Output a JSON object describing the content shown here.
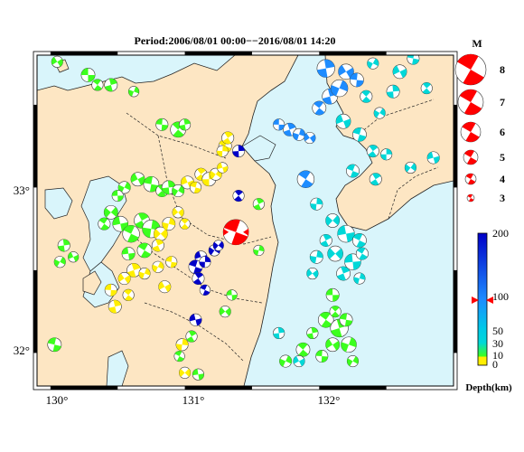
{
  "title": "Period:2006/08/01 00:00−−2016/08/01 14:20",
  "colors": {
    "sea": "#d9f5fb",
    "land": "#fde6c3",
    "border": "#222222",
    "mainshock": "#ff0000",
    "depth_0_10": "#ffee00",
    "depth_10_30": "#3cff1e",
    "depth_30_50": "#00d8d8",
    "depth_50_100": "#1e8cff",
    "depth_100_200": "#0000c8"
  },
  "axes": {
    "lon_ticks": [
      "130°",
      "131°",
      "132°"
    ],
    "lat_ticks": [
      "33°",
      "32°"
    ]
  },
  "magnitude_legend": {
    "header": "M",
    "items": [
      "8",
      "7",
      "6",
      "5",
      "4",
      "3"
    ]
  },
  "depth_scale": {
    "title": "Depth(km)",
    "labels": [
      "200",
      "100",
      "50",
      "30",
      "10",
      "0"
    ]
  },
  "map_data": {
    "region": {
      "lon": [
        129.9,
        133.0
      ],
      "lat": [
        31.8,
        33.8
      ]
    },
    "mainshock": {
      "lon": 131.38,
      "lat": 32.73,
      "depth_km": 10,
      "magnitude": 5
    },
    "events": [
      {
        "lon": 130.28,
        "lat": 33.68,
        "d": 15,
        "m": 3.8
      },
      {
        "lon": 130.35,
        "lat": 33.62,
        "d": 15,
        "m": 3.5
      },
      {
        "lon": 130.45,
        "lat": 33.62,
        "d": 15,
        "m": 3.7
      },
      {
        "lon": 130.62,
        "lat": 33.58,
        "d": 12,
        "m": 3.4
      },
      {
        "lon": 130.05,
        "lat": 33.76,
        "d": 20,
        "m": 3.5
      },
      {
        "lon": 130.83,
        "lat": 33.38,
        "d": 12,
        "m": 3.6
      },
      {
        "lon": 130.95,
        "lat": 33.35,
        "d": 20,
        "m": 4.0
      },
      {
        "lon": 131.0,
        "lat": 33.38,
        "d": 20,
        "m": 3.5
      },
      {
        "lon": 130.55,
        "lat": 33.0,
        "d": 20,
        "m": 3.6
      },
      {
        "lon": 130.65,
        "lat": 33.05,
        "d": 15,
        "m": 3.8
      },
      {
        "lon": 130.75,
        "lat": 33.02,
        "d": 20,
        "m": 4.0
      },
      {
        "lon": 130.83,
        "lat": 32.98,
        "d": 20,
        "m": 3.6
      },
      {
        "lon": 130.88,
        "lat": 33.0,
        "d": 15,
        "m": 3.8
      },
      {
        "lon": 130.95,
        "lat": 32.98,
        "d": 12,
        "m": 3.6
      },
      {
        "lon": 131.02,
        "lat": 33.03,
        "d": 10,
        "m": 3.7
      },
      {
        "lon": 131.08,
        "lat": 33.0,
        "d": 8,
        "m": 3.5
      },
      {
        "lon": 131.12,
        "lat": 33.08,
        "d": 8,
        "m": 3.6
      },
      {
        "lon": 131.18,
        "lat": 33.05,
        "d": 10,
        "m": 3.8
      },
      {
        "lon": 131.23,
        "lat": 33.08,
        "d": 10,
        "m": 3.6
      },
      {
        "lon": 131.28,
        "lat": 33.12,
        "d": 6,
        "m": 3.4
      },
      {
        "lon": 131.3,
        "lat": 33.25,
        "d": 8,
        "m": 3.7
      },
      {
        "lon": 131.32,
        "lat": 33.3,
        "d": 6,
        "m": 3.6
      },
      {
        "lon": 131.28,
        "lat": 33.22,
        "d": 10,
        "m": 3.5
      },
      {
        "lon": 130.45,
        "lat": 32.85,
        "d": 20,
        "m": 3.8
      },
      {
        "lon": 130.52,
        "lat": 32.78,
        "d": 25,
        "m": 4.0
      },
      {
        "lon": 130.6,
        "lat": 32.72,
        "d": 20,
        "m": 4.2
      },
      {
        "lon": 130.68,
        "lat": 32.8,
        "d": 15,
        "m": 4.0
      },
      {
        "lon": 130.75,
        "lat": 32.75,
        "d": 12,
        "m": 4.3
      },
      {
        "lon": 130.82,
        "lat": 32.72,
        "d": 10,
        "m": 3.8
      },
      {
        "lon": 130.58,
        "lat": 32.6,
        "d": 15,
        "m": 3.7
      },
      {
        "lon": 130.7,
        "lat": 32.62,
        "d": 12,
        "m": 3.9
      },
      {
        "lon": 130.8,
        "lat": 32.65,
        "d": 10,
        "m": 3.6
      },
      {
        "lon": 130.88,
        "lat": 32.78,
        "d": 8,
        "m": 3.7
      },
      {
        "lon": 130.95,
        "lat": 32.85,
        "d": 8,
        "m": 3.5
      },
      {
        "lon": 130.5,
        "lat": 32.95,
        "d": 20,
        "m": 3.5
      },
      {
        "lon": 130.4,
        "lat": 32.78,
        "d": 25,
        "m": 3.6
      },
      {
        "lon": 130.62,
        "lat": 32.5,
        "d": 8,
        "m": 3.8
      },
      {
        "lon": 130.7,
        "lat": 32.48,
        "d": 10,
        "m": 3.5
      },
      {
        "lon": 130.55,
        "lat": 32.45,
        "d": 8,
        "m": 3.6
      },
      {
        "lon": 130.45,
        "lat": 32.38,
        "d": 10,
        "m": 3.6
      },
      {
        "lon": 130.58,
        "lat": 32.35,
        "d": 8,
        "m": 3.5
      },
      {
        "lon": 130.48,
        "lat": 32.28,
        "d": 6,
        "m": 3.7
      },
      {
        "lon": 130.8,
        "lat": 32.52,
        "d": 10,
        "m": 3.5
      },
      {
        "lon": 130.85,
        "lat": 32.4,
        "d": 8,
        "m": 3.6
      },
      {
        "lon": 130.9,
        "lat": 32.55,
        "d": 10,
        "m": 3.5
      },
      {
        "lon": 131.0,
        "lat": 32.78,
        "d": 6,
        "m": 3.4
      },
      {
        "lon": 130.1,
        "lat": 32.65,
        "d": 15,
        "m": 3.6
      },
      {
        "lon": 130.07,
        "lat": 32.55,
        "d": 20,
        "m": 3.5
      },
      {
        "lon": 130.17,
        "lat": 32.58,
        "d": 15,
        "m": 3.4
      },
      {
        "lon": 130.03,
        "lat": 32.05,
        "d": 15,
        "m": 3.8
      },
      {
        "lon": 131.4,
        "lat": 32.95,
        "d": 150,
        "m": 3.5
      },
      {
        "lon": 131.4,
        "lat": 33.22,
        "d": 150,
        "m": 3.6
      },
      {
        "lon": 131.22,
        "lat": 32.62,
        "d": 150,
        "m": 3.5
      },
      {
        "lon": 131.12,
        "lat": 32.58,
        "d": 160,
        "m": 3.6
      },
      {
        "lon": 131.08,
        "lat": 32.52,
        "d": 160,
        "m": 3.8
      },
      {
        "lon": 131.1,
        "lat": 32.45,
        "d": 150,
        "m": 3.6
      },
      {
        "lon": 131.15,
        "lat": 32.55,
        "d": 140,
        "m": 3.5
      },
      {
        "lon": 131.25,
        "lat": 32.65,
        "d": 140,
        "m": 3.4
      },
      {
        "lon": 131.08,
        "lat": 32.2,
        "d": 170,
        "m": 3.6
      },
      {
        "lon": 131.15,
        "lat": 32.38,
        "d": 150,
        "m": 3.4
      },
      {
        "lon": 131.05,
        "lat": 32.1,
        "d": 20,
        "m": 3.5
      },
      {
        "lon": 130.98,
        "lat": 32.05,
        "d": 10,
        "m": 3.6
      },
      {
        "lon": 131.0,
        "lat": 31.88,
        "d": 10,
        "m": 3.5
      },
      {
        "lon": 131.1,
        "lat": 31.87,
        "d": 30,
        "m": 3.5
      },
      {
        "lon": 130.96,
        "lat": 31.98,
        "d": 12,
        "m": 3.4
      },
      {
        "lon": 131.55,
        "lat": 32.9,
        "d": 30,
        "m": 3.5
      },
      {
        "lon": 131.55,
        "lat": 32.62,
        "d": 30,
        "m": 3.4
      },
      {
        "lon": 131.3,
        "lat": 32.25,
        "d": 30,
        "m": 3.5
      },
      {
        "lon": 131.35,
        "lat": 32.35,
        "d": 25,
        "m": 3.4
      },
      {
        "lon": 131.9,
        "lat": 33.05,
        "d": 60,
        "m": 4.2
      },
      {
        "lon": 131.78,
        "lat": 33.35,
        "d": 70,
        "m": 3.7
      },
      {
        "lon": 131.85,
        "lat": 33.32,
        "d": 70,
        "m": 3.6
      },
      {
        "lon": 131.93,
        "lat": 33.3,
        "d": 60,
        "m": 3.5
      },
      {
        "lon": 131.7,
        "lat": 33.38,
        "d": 75,
        "m": 3.5
      },
      {
        "lon": 132.0,
        "lat": 33.48,
        "d": 60,
        "m": 3.8
      },
      {
        "lon": 132.08,
        "lat": 33.55,
        "d": 60,
        "m": 4.0
      },
      {
        "lon": 132.15,
        "lat": 33.6,
        "d": 55,
        "m": 4.2
      },
      {
        "lon": 132.2,
        "lat": 33.7,
        "d": 60,
        "m": 4.0
      },
      {
        "lon": 132.28,
        "lat": 33.65,
        "d": 55,
        "m": 3.8
      },
      {
        "lon": 132.35,
        "lat": 33.55,
        "d": 50,
        "m": 3.6
      },
      {
        "lon": 132.05,
        "lat": 33.72,
        "d": 70,
        "m": 4.3
      },
      {
        "lon": 132.4,
        "lat": 33.75,
        "d": 50,
        "m": 3.5
      },
      {
        "lon": 132.6,
        "lat": 33.7,
        "d": 45,
        "m": 3.8
      },
      {
        "lon": 132.7,
        "lat": 33.78,
        "d": 45,
        "m": 3.6
      },
      {
        "lon": 132.8,
        "lat": 33.6,
        "d": 40,
        "m": 3.5
      },
      {
        "lon": 132.55,
        "lat": 33.58,
        "d": 45,
        "m": 3.7
      },
      {
        "lon": 132.45,
        "lat": 33.45,
        "d": 40,
        "m": 3.5
      },
      {
        "lon": 132.18,
        "lat": 33.4,
        "d": 50,
        "m": 3.9
      },
      {
        "lon": 132.3,
        "lat": 33.32,
        "d": 45,
        "m": 3.8
      },
      {
        "lon": 132.4,
        "lat": 33.22,
        "d": 40,
        "m": 3.6
      },
      {
        "lon": 132.5,
        "lat": 33.2,
        "d": 40,
        "m": 3.5
      },
      {
        "lon": 132.68,
        "lat": 33.12,
        "d": 35,
        "m": 3.5
      },
      {
        "lon": 132.85,
        "lat": 33.18,
        "d": 40,
        "m": 3.6
      },
      {
        "lon": 132.25,
        "lat": 33.1,
        "d": 40,
        "m": 3.7
      },
      {
        "lon": 132.42,
        "lat": 33.05,
        "d": 35,
        "m": 3.6
      },
      {
        "lon": 131.98,
        "lat": 32.9,
        "d": 40,
        "m": 3.6
      },
      {
        "lon": 132.1,
        "lat": 32.8,
        "d": 40,
        "m": 3.8
      },
      {
        "lon": 132.2,
        "lat": 32.72,
        "d": 40,
        "m": 4.2
      },
      {
        "lon": 132.3,
        "lat": 32.68,
        "d": 35,
        "m": 3.8
      },
      {
        "lon": 132.05,
        "lat": 32.68,
        "d": 45,
        "m": 3.6
      },
      {
        "lon": 131.98,
        "lat": 32.58,
        "d": 40,
        "m": 3.7
      },
      {
        "lon": 132.12,
        "lat": 32.6,
        "d": 40,
        "m": 4.0
      },
      {
        "lon": 132.25,
        "lat": 32.55,
        "d": 38,
        "m": 4.1
      },
      {
        "lon": 132.32,
        "lat": 32.6,
        "d": 35,
        "m": 3.6
      },
      {
        "lon": 132.18,
        "lat": 32.48,
        "d": 38,
        "m": 3.8
      },
      {
        "lon": 132.3,
        "lat": 32.45,
        "d": 35,
        "m": 3.5
      },
      {
        "lon": 131.95,
        "lat": 32.48,
        "d": 40,
        "m": 3.5
      },
      {
        "lon": 132.1,
        "lat": 32.35,
        "d": 25,
        "m": 3.7
      },
      {
        "lon": 132.05,
        "lat": 32.2,
        "d": 20,
        "m": 4.0
      },
      {
        "lon": 132.15,
        "lat": 32.15,
        "d": 20,
        "m": 4.3
      },
      {
        "lon": 132.22,
        "lat": 32.05,
        "d": 25,
        "m": 4.0
      },
      {
        "lon": 132.1,
        "lat": 32.05,
        "d": 20,
        "m": 3.8
      },
      {
        "lon": 132.02,
        "lat": 31.98,
        "d": 25,
        "m": 3.6
      },
      {
        "lon": 131.88,
        "lat": 32.02,
        "d": 20,
        "m": 3.8
      },
      {
        "lon": 131.95,
        "lat": 32.12,
        "d": 30,
        "m": 3.5
      },
      {
        "lon": 131.75,
        "lat": 31.95,
        "d": 30,
        "m": 3.6
      },
      {
        "lon": 131.85,
        "lat": 31.95,
        "d": 40,
        "m": 3.5
      },
      {
        "lon": 132.2,
        "lat": 32.2,
        "d": 20,
        "m": 3.7
      },
      {
        "lon": 132.12,
        "lat": 32.25,
        "d": 25,
        "m": 3.5
      },
      {
        "lon": 131.7,
        "lat": 32.12,
        "d": 40,
        "m": 3.5
      },
      {
        "lon": 132.25,
        "lat": 31.95,
        "d": 30,
        "m": 3.5
      }
    ]
  }
}
